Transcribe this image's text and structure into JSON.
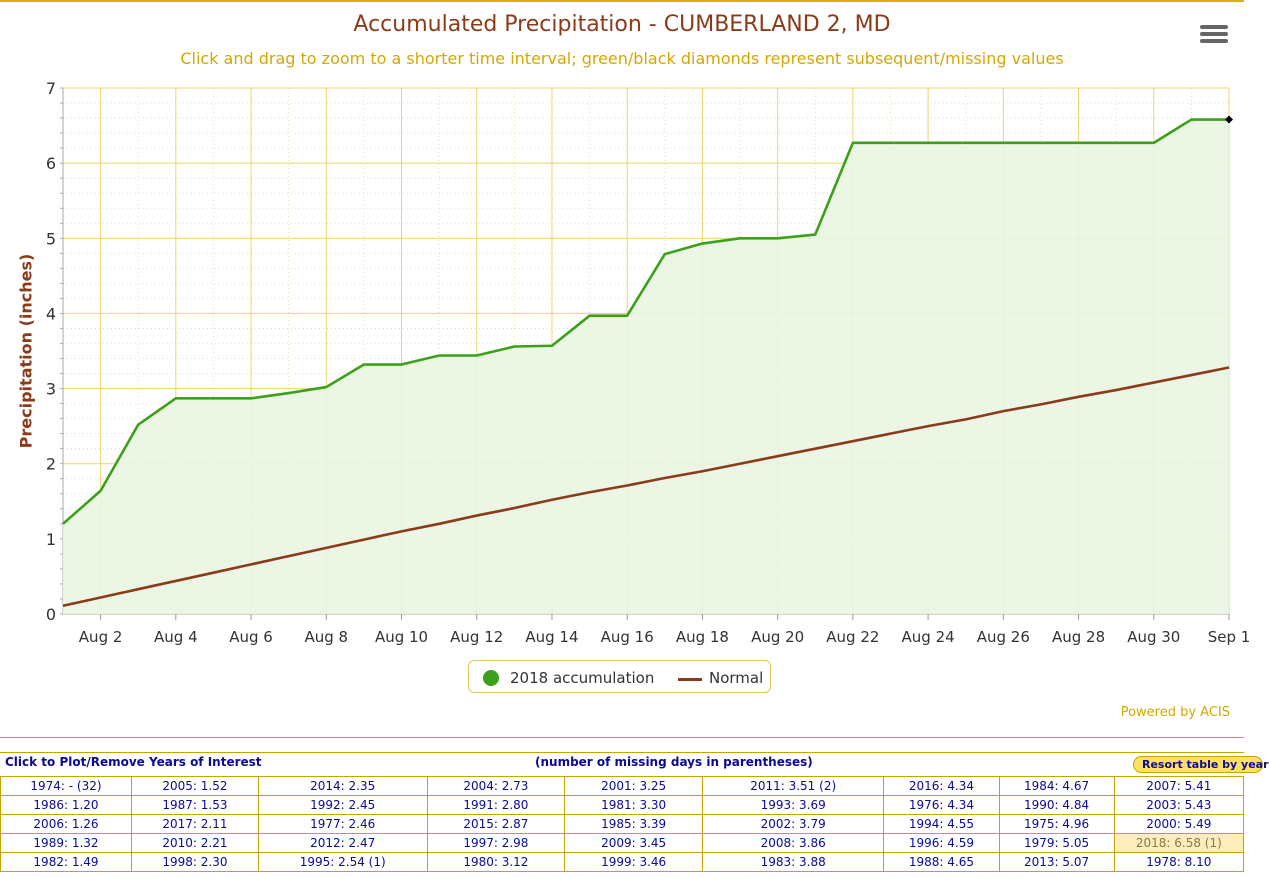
{
  "chart_data": {
    "type": "area",
    "title": "Accumulated Precipitation - CUMBERLAND 2, MD",
    "subtitle": "Click and drag to zoom to a shorter time interval; green/black diamonds represent subsequent/missing values",
    "xlabel": "",
    "ylabel": "Precipitation (inches)",
    "ylim": [
      0,
      7
    ],
    "yticks": [
      "0",
      "1",
      "2",
      "3",
      "4",
      "5",
      "6",
      "7"
    ],
    "xlim": [
      "Aug 1",
      "Sep 1"
    ],
    "xticks": [
      "Aug 2",
      "Aug 4",
      "Aug 6",
      "Aug 8",
      "Aug 10",
      "Aug 12",
      "Aug 14",
      "Aug 16",
      "Aug 18",
      "Aug 20",
      "Aug 22",
      "Aug 24",
      "Aug 26",
      "Aug 28",
      "Aug 30",
      "Sep 1"
    ],
    "x": [
      "Aug 1",
      "Aug 2",
      "Aug 3",
      "Aug 4",
      "Aug 5",
      "Aug 6",
      "Aug 7",
      "Aug 8",
      "Aug 9",
      "Aug 10",
      "Aug 11",
      "Aug 12",
      "Aug 13",
      "Aug 14",
      "Aug 15",
      "Aug 16",
      "Aug 17",
      "Aug 18",
      "Aug 19",
      "Aug 20",
      "Aug 21",
      "Aug 22",
      "Aug 23",
      "Aug 24",
      "Aug 25",
      "Aug 26",
      "Aug 27",
      "Aug 28",
      "Aug 29",
      "Aug 30",
      "Aug 31",
      "Sep 1"
    ],
    "series": [
      {
        "name": "2018 accumulation",
        "color": "#3da01a",
        "fill": "#e9f5e1",
        "values": [
          1.2,
          1.64,
          2.52,
          2.87,
          2.87,
          2.87,
          2.94,
          3.02,
          3.32,
          3.32,
          3.44,
          3.44,
          3.56,
          3.57,
          3.97,
          3.97,
          4.79,
          4.93,
          5.0,
          5.0,
          5.05,
          6.27,
          6.27,
          6.27,
          6.27,
          6.27,
          6.27,
          6.27,
          6.27,
          6.27,
          6.58,
          6.58
        ]
      },
      {
        "name": "Normal",
        "color": "#8b3a1a",
        "values": [
          0.11,
          0.22,
          0.33,
          0.44,
          0.55,
          0.66,
          0.77,
          0.88,
          0.99,
          1.1,
          1.2,
          1.31,
          1.41,
          1.52,
          1.62,
          1.71,
          1.81,
          1.9,
          2.0,
          2.1,
          2.2,
          2.3,
          2.4,
          2.5,
          2.59,
          2.7,
          2.79,
          2.89,
          2.98,
          3.08,
          3.18,
          3.28
        ]
      }
    ],
    "markers": [
      {
        "x": "Sep 1",
        "y": 6.58,
        "shape": "diamond",
        "color": "#000000"
      }
    ],
    "grid": true,
    "legend": "bottom-center"
  },
  "legend": {
    "item1": "2018 accumulation",
    "item2": "Normal"
  },
  "credit": "Powered by ACIS",
  "table": {
    "header_left": "Click to Plot/Remove Years of Interest",
    "header_center": "(number of missing days in parentheses)",
    "resort_label": "Resort table by year",
    "highlighted": "2018: 6.58 (1)",
    "rows": [
      [
        "1974: - (32)",
        "2005: 1.52",
        "2014: 2.35",
        "2004: 2.73",
        "2001: 3.25",
        "2011: 3.51 (2)",
        "2016: 4.34",
        "1984: 4.67",
        "2007: 5.41"
      ],
      [
        "1986: 1.20",
        "1987: 1.53",
        "1992: 2.45",
        "1991: 2.80",
        "1981: 3.30",
        "1993: 3.69",
        "1976: 4.34",
        "1990: 4.84",
        "2003: 5.43"
      ],
      [
        "2006: 1.26",
        "2017: 2.11",
        "1977: 2.46",
        "2015: 2.87",
        "1985: 3.39",
        "2002: 3.79",
        "1994: 4.55",
        "1975: 4.96",
        "2000: 5.49"
      ],
      [
        "1989: 1.32",
        "2010: 2.21",
        "2012: 2.47",
        "1997: 2.98",
        "2009: 3.45",
        "2008: 3.86",
        "1996: 4.59",
        "1979: 5.05",
        "2018: 6.58 (1)"
      ],
      [
        "1982: 1.49",
        "1998: 2.30",
        "1995: 2.54 (1)",
        "1980: 3.12",
        "1999: 3.46",
        "1983: 3.88",
        "1988: 4.65",
        "2013: 5.07",
        "1978: 8.10"
      ]
    ]
  }
}
